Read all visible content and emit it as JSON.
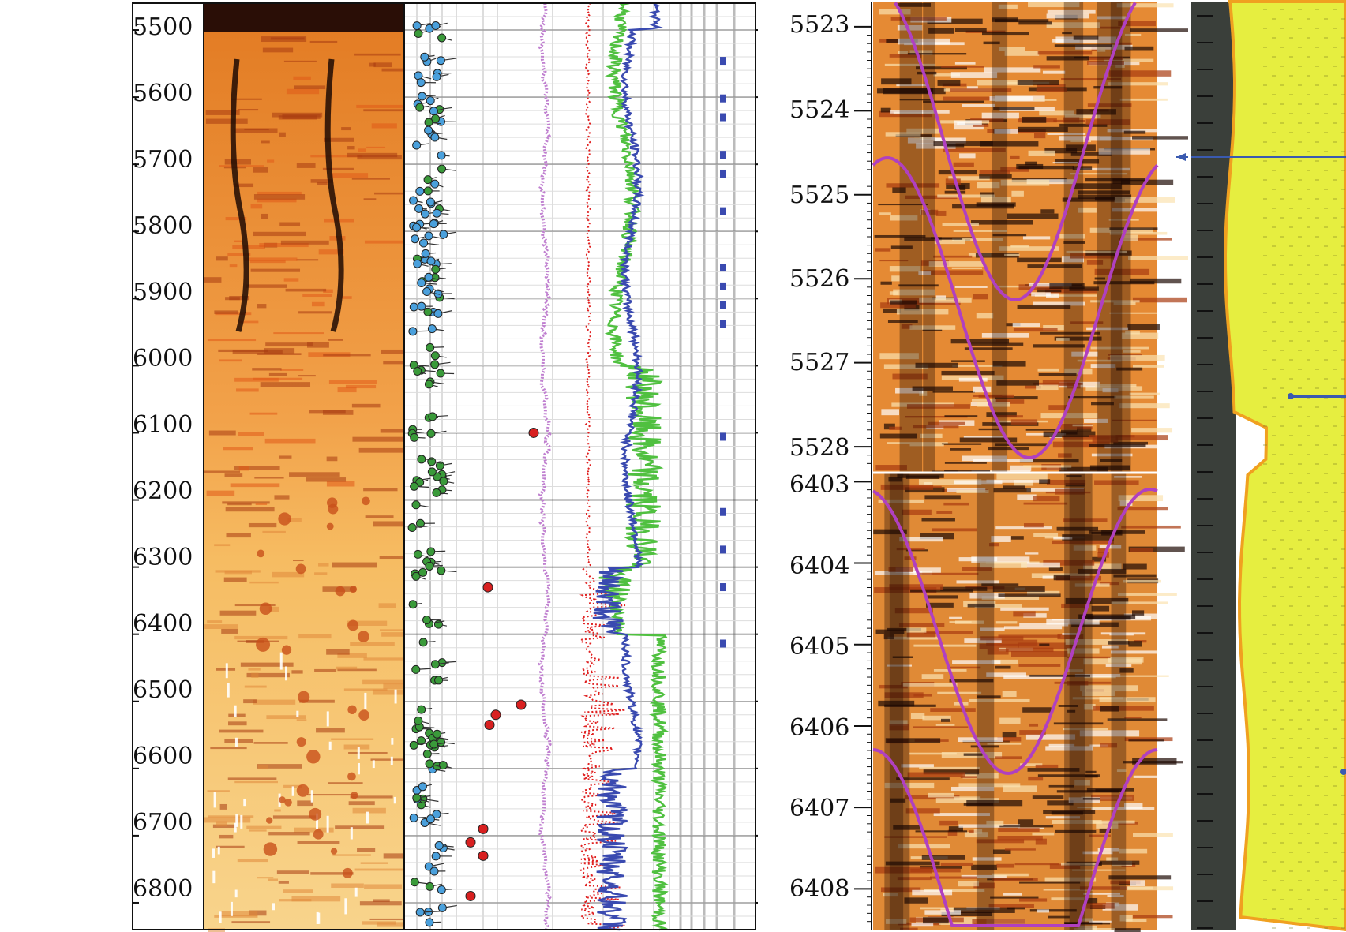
{
  "colors": {
    "image_light": "#fbe6a8",
    "image_mid": "#f0a040",
    "image_dark": "#a83a10",
    "image_black": "#1e0a04",
    "sinusoid": "#b040c0",
    "dip_blue": "#4aa0dc",
    "dip_green": "#3a9a3a",
    "dip_red": "#d82020",
    "curve_blue": "#3a4ab0",
    "curve_green": "#50c040",
    "curve_red": "#e02020",
    "curve_purple": "#c080d0",
    "litho_dark": "#3a3f3a",
    "litho_yellow": "#e6ee40",
    "litho_orange": "#f0a020"
  },
  "chart_data": [
    {
      "type": "line",
      "title": "",
      "ylabel": "",
      "ylim": [
        5460,
        6840
      ],
      "ytick_labels": [
        "5500",
        "5600",
        "5700",
        "5800",
        "5900",
        "6000",
        "6100",
        "6200",
        "6300",
        "6400",
        "6500",
        "6600",
        "6700",
        "6800"
      ],
      "series": [
        {
          "color": "#3a4ab0",
          "x": [
            5460,
            5500,
            5550,
            5600,
            5650,
            5700,
            5750,
            5800,
            5850,
            5900,
            5950,
            6000,
            6050,
            6100,
            6150,
            6200,
            6250,
            6300,
            6350,
            6400,
            6450,
            6500,
            6550,
            6600,
            6650,
            6700,
            6750,
            6800,
            6840
          ],
          "y": [
            0.8,
            0.6,
            0.5,
            0.5,
            0.45,
            0.48,
            0.5,
            0.52,
            0.5,
            0.55,
            0.55,
            0.6,
            0.55,
            0.52,
            0.55,
            0.55,
            0.5,
            0.4,
            0.35,
            0.45,
            0.5,
            0.45,
            0.48,
            0.35,
            0.3,
            0.35,
            0.3,
            0.28,
            0.3
          ]
        },
        {
          "color": "#50c040",
          "x": [
            5460,
            5500,
            5550,
            5600,
            5650,
            5700,
            5750,
            5800,
            5850,
            5900,
            5950,
            6000,
            6050,
            6100,
            6150,
            6200,
            6250,
            6300,
            6350,
            6400,
            6450,
            6500,
            6550,
            6600,
            6650,
            6700,
            6750,
            6800,
            6840
          ],
          "y": [
            0.35,
            0.25,
            0.3,
            0.35,
            0.4,
            0.45,
            0.5,
            0.55,
            0.55,
            0.6,
            0.6,
            0.65,
            0.55,
            0.55,
            0.6,
            0.6,
            0.55,
            0.5,
            0.55,
            0.65,
            0.7,
            0.6,
            0.65,
            0.7,
            0.75,
            0.7,
            0.65,
            0.7,
            0.7
          ]
        },
        {
          "color": "#e02020",
          "x": [
            5460,
            5550,
            5650,
            5750,
            5850,
            5950,
            6050,
            6150,
            6250,
            6350,
            6450,
            6550,
            6650,
            6750,
            6840
          ],
          "y": [
            0.12,
            0.12,
            0.13,
            0.12,
            0.12,
            0.13,
            0.12,
            0.12,
            0.14,
            0.18,
            0.15,
            0.16,
            0.2,
            0.22,
            0.2
          ]
        }
      ]
    },
    {
      "type": "heatmap",
      "title": "",
      "ylim": [
        5522.7,
        5528.3
      ],
      "ytick_labels": [
        "5523",
        "5524",
        "5525",
        "5526",
        "5527",
        "5528"
      ]
    },
    {
      "type": "heatmap",
      "title": "",
      "ylim": [
        6402.9,
        6408.5
      ],
      "ytick_labels": [
        "6403",
        "6404",
        "6405",
        "6406",
        "6407",
        "6408"
      ]
    }
  ]
}
